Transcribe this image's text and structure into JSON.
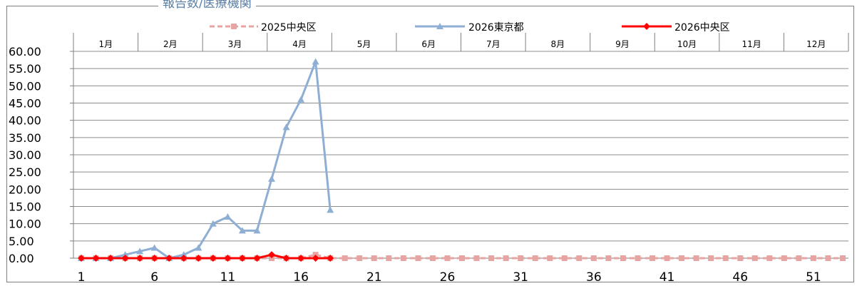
{
  "chart_data": {
    "type": "line",
    "title": "報告数/医療機関",
    "x_ticks": [
      "1",
      "6",
      "11",
      "16",
      "21",
      "26",
      "31",
      "36",
      "41",
      "46",
      "51"
    ],
    "xlim": [
      1,
      53
    ],
    "ylim": [
      0,
      60
    ],
    "y_ticks": [
      "0.00",
      "5.00",
      "10.00",
      "15.00",
      "20.00",
      "25.00",
      "30.00",
      "35.00",
      "40.00",
      "45.00",
      "50.00",
      "55.00",
      "60.00"
    ],
    "months": [
      "1月",
      "2月",
      "3月",
      "4月",
      "5月",
      "6月",
      "7月",
      "8月",
      "9月",
      "10月",
      "11月",
      "12月"
    ],
    "grid": true,
    "legend_position": "top",
    "series": [
      {
        "name": "2025中央区",
        "color": "#e6a5a3",
        "style": "dashed",
        "marker": "square",
        "x": [
          1,
          2,
          3,
          4,
          5,
          6,
          7,
          8,
          9,
          10,
          11,
          12,
          13,
          14,
          15,
          16,
          17,
          18,
          19,
          20,
          21,
          22,
          23,
          24,
          25,
          26,
          27,
          28,
          29,
          30,
          31,
          32,
          33,
          34,
          35,
          36,
          37,
          38,
          39,
          40,
          41,
          42,
          43,
          44,
          45,
          46,
          47,
          48,
          49,
          50,
          51,
          52,
          53
        ],
        "values": [
          0,
          0,
          0,
          0,
          0,
          0,
          0,
          0,
          0,
          0,
          0,
          0,
          0,
          0,
          0,
          0,
          1,
          0,
          0,
          0,
          0,
          0,
          0,
          0,
          0,
          0,
          0,
          0,
          0,
          0,
          0,
          0,
          0,
          0,
          0,
          0,
          0,
          0,
          0,
          0,
          0,
          0,
          0,
          0,
          0,
          0,
          0,
          0,
          0,
          0,
          0,
          0,
          0
        ]
      },
      {
        "name": "2026東京都",
        "color": "#8faed3",
        "style": "solid",
        "marker": "triangle",
        "x": [
          1,
          2,
          3,
          4,
          5,
          6,
          7,
          8,
          9,
          10,
          11,
          12,
          13,
          14,
          15,
          16,
          17,
          18
        ],
        "values": [
          0,
          0,
          0,
          1,
          2,
          3,
          0,
          1,
          3,
          10,
          12,
          8,
          8,
          23,
          38,
          46,
          57,
          14
        ]
      },
      {
        "name": "2026中央区",
        "color": "#ff0000",
        "style": "solid",
        "marker": "diamond",
        "x": [
          1,
          2,
          3,
          4,
          5,
          6,
          7,
          8,
          9,
          10,
          11,
          12,
          13,
          14,
          15,
          16,
          17,
          18
        ],
        "values": [
          0,
          0,
          0,
          0,
          0,
          0,
          0,
          0,
          0,
          0,
          0,
          0,
          0,
          1,
          0,
          0,
          0,
          0
        ]
      }
    ]
  }
}
